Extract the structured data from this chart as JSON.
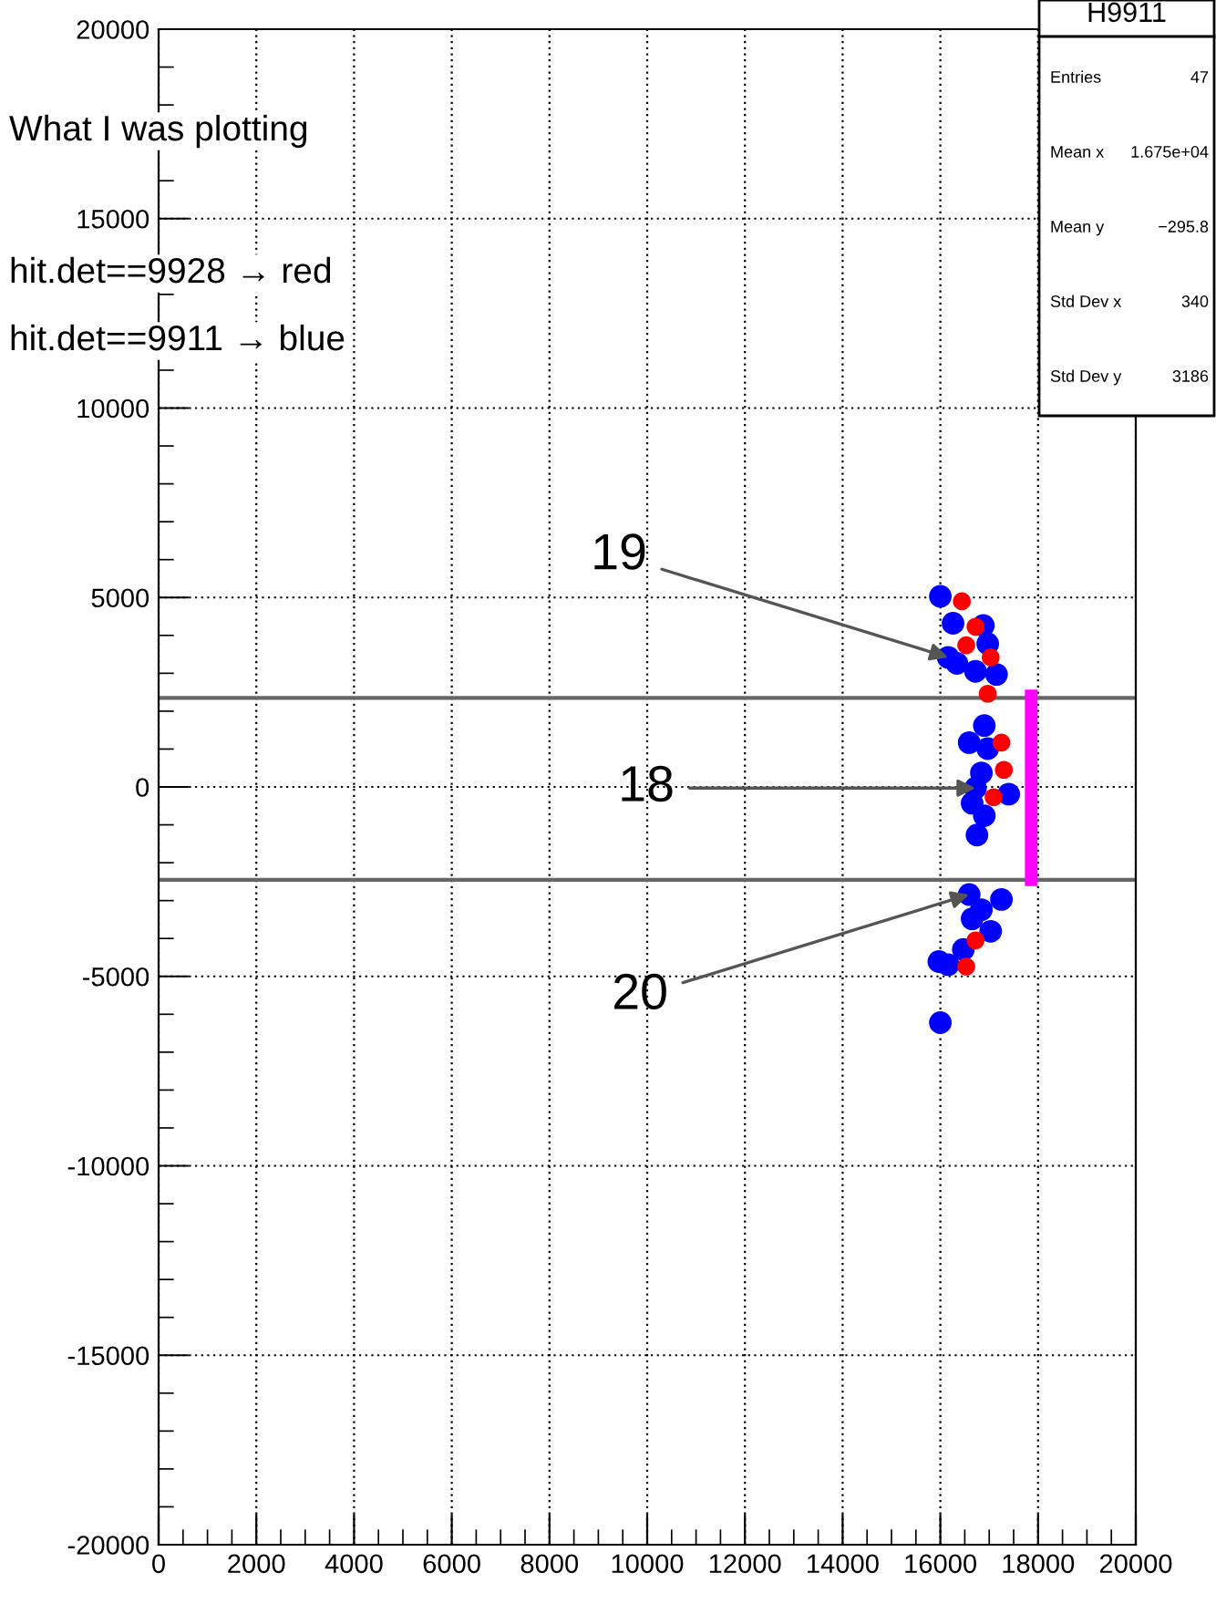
{
  "chart_data": {
    "type": "scatter",
    "xlim": [
      0,
      20000
    ],
    "ylim": [
      -20000,
      20000
    ],
    "xticks": [
      0,
      2000,
      4000,
      6000,
      8000,
      10000,
      12000,
      14000,
      16000,
      18000,
      20000
    ],
    "yticks": [
      -20000,
      -15000,
      -10000,
      -5000,
      0,
      5000,
      10000,
      15000,
      20000
    ],
    "grid": true,
    "series": [
      {
        "color": "#0000ff",
        "marker": "circle",
        "x": [
          16000,
          16260,
          16880,
          16970,
          16160,
          16340,
          16720,
          17150,
          16900,
          16590,
          16970,
          16840,
          16720,
          17400,
          16650,
          16900,
          16750,
          16590,
          17250,
          16840,
          16650,
          17030,
          16470,
          15970,
          16160,
          16000
        ],
        "values": [
          5030,
          4320,
          4260,
          3780,
          3420,
          3260,
          3050,
          2970,
          1620,
          1170,
          1010,
          370,
          -30,
          -190,
          -430,
          -760,
          -1270,
          -2840,
          -2970,
          -3240,
          -3480,
          -3810,
          -4290,
          -4610,
          -4690,
          -6220
        ]
      },
      {
        "color": "#ff0000",
        "marker": "circle",
        "x": [
          16440,
          16720,
          16530,
          17030,
          16970,
          17250,
          17300,
          17090,
          16720,
          16530
        ],
        "values": [
          4900,
          4230,
          3740,
          3420,
          2460,
          1170,
          450,
          -270,
          -4050,
          -4740
        ]
      },
      {
        "type": "line",
        "color": "#ff00ff",
        "x": [
          17860,
          17860
        ],
        "values": [
          -2450,
          2400
        ]
      }
    ],
    "ref_lines": [
      {
        "axis": "y",
        "value": 2350,
        "color": "#666666"
      },
      {
        "axis": "y",
        "value": -2450,
        "color": "#666666"
      }
    ],
    "annotations": [
      "What I was plotting",
      "hit.det==9928 → red",
      "hit.det==9911 → blue",
      "H9911",
      "Entries",
      "47",
      "Mean x",
      "1.675e+04",
      "Mean y",
      "−295.8",
      "Std Dev x",
      "340",
      "Std Dev y",
      "3186",
      {
        "text": "19",
        "x": 16160,
        "y": 3420
      },
      {
        "text": "18",
        "x": 16720,
        "y": -30
      },
      {
        "text": "20",
        "x": 16590,
        "y": -2840
      }
    ]
  }
}
